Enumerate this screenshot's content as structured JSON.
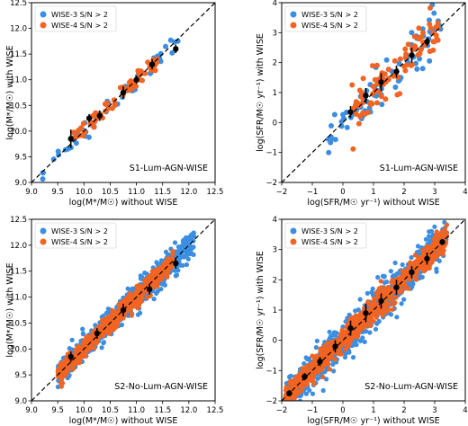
{
  "colors": {
    "wise3": "#3b8ee0",
    "wise4": "#f26422",
    "median": "#000000",
    "one_to_one": "#000000"
  },
  "legend": [
    "WISE-3 S/N > 2",
    "WISE-4 S/N > 2"
  ],
  "chart_data": [
    {
      "type": "scatter",
      "panel": "top-left",
      "annotation": "S1-Lum-AGN-WISE",
      "xlabel": "log(M*/M☉) without WISE",
      "ylabel": "log(M*/M☉) with WISE",
      "xlim": [
        9.0,
        12.5
      ],
      "ylim": [
        9.0,
        12.5
      ],
      "xticks": [
        "9.0",
        "9.5",
        "10.0",
        "10.5",
        "11.0",
        "11.5",
        "12.0",
        "12.5"
      ],
      "yticks": [
        "9.0",
        "9.5",
        "10.0",
        "10.5",
        "11.0",
        "11.5",
        "12.0",
        "12.5"
      ],
      "legend_position": "top-left",
      "one_to_one_line": true,
      "series": [
        {
          "name": "WISE-3 S/N > 2",
          "color_key": "wise3",
          "n": 60,
          "x_range": [
            9.2,
            11.8
          ],
          "scatter": 0.09
        },
        {
          "name": "WISE-4 S/N > 2",
          "color_key": "wise4",
          "n": 70,
          "x_range": [
            9.8,
            11.4
          ],
          "scatter": 0.08
        }
      ],
      "medians": {
        "x": [
          9.75,
          10.1,
          10.3,
          10.75,
          11.0,
          11.3,
          11.75
        ],
        "y": [
          9.85,
          10.25,
          10.3,
          10.75,
          11.0,
          11.3,
          11.6
        ],
        "yerr": [
          0.18,
          0.08,
          0.1,
          0.12,
          0.08,
          0.1,
          0.08
        ]
      }
    },
    {
      "type": "scatter",
      "panel": "top-right",
      "annotation": "S1-Lum-AGN-WISE",
      "xlabel": "log(SFR/M☉ yr⁻¹) without WISE",
      "ylabel": "log(SFR/M☉ yr⁻¹) with WISE",
      "xlim": [
        -2,
        4
      ],
      "ylim": [
        -2,
        4
      ],
      "xticks": [
        "−2",
        "−1",
        "0",
        "1",
        "2",
        "3",
        "4"
      ],
      "yticks": [
        "−2",
        "−1",
        "0",
        "1",
        "2",
        "3",
        "4"
      ],
      "legend_position": "top-left",
      "one_to_one_line": true,
      "series": [
        {
          "name": "WISE-3 S/N > 2",
          "color_key": "wise3",
          "n": 80,
          "x_range": [
            -0.5,
            3.2
          ],
          "scatter": 0.35
        },
        {
          "name": "WISE-4 S/N > 2",
          "color_key": "wise4",
          "n": 90,
          "x_range": [
            0.3,
            3.3
          ],
          "scatter": 0.35
        }
      ],
      "medians": {
        "x": [
          0.25,
          0.75,
          1.25,
          1.75,
          2.25,
          2.75
        ],
        "y": [
          0.35,
          0.9,
          1.35,
          1.7,
          2.25,
          2.7
        ],
        "yerr": [
          0.2,
          0.25,
          0.3,
          0.2,
          0.25,
          0.15
        ]
      }
    },
    {
      "type": "scatter",
      "panel": "bottom-left",
      "annotation": "S2-No-Lum-AGN-WISE",
      "xlabel": "log(M*/M☉) without WISE",
      "ylabel": "log(M*/M☉) with WISE",
      "xlim": [
        9.0,
        12.5
      ],
      "ylim": [
        9.0,
        12.5
      ],
      "xticks": [
        "9.0",
        "9.5",
        "10.0",
        "10.5",
        "11.0",
        "11.5",
        "12.0",
        "12.5"
      ],
      "yticks": [
        "9.0",
        "9.5",
        "10.0",
        "10.5",
        "11.0",
        "11.5",
        "12.0",
        "12.5"
      ],
      "legend_position": "top-left",
      "one_to_one_line": true,
      "series": [
        {
          "name": "WISE-3 S/N > 2",
          "color_key": "wise3",
          "n": 700,
          "x_range": [
            9.5,
            12.1
          ],
          "scatter": 0.13
        },
        {
          "name": "WISE-4 S/N > 2",
          "color_key": "wise4",
          "n": 600,
          "x_range": [
            9.5,
            11.7
          ],
          "scatter": 0.09
        }
      ],
      "medians": {
        "x": [
          9.75,
          10.25,
          10.75,
          11.25,
          11.75
        ],
        "y": [
          9.85,
          10.3,
          10.75,
          11.15,
          11.65
        ],
        "yerr": [
          0.1,
          0.1,
          0.12,
          0.1,
          0.1
        ]
      }
    },
    {
      "type": "scatter",
      "panel": "bottom-right",
      "annotation": "S2-No-Lum-AGN-WISE",
      "xlabel": "log(SFR/M☉ yr⁻¹) without WISE",
      "ylabel": "log(SFR/M☉ yr⁻¹) with WISE",
      "xlim": [
        -2,
        4
      ],
      "ylim": [
        -2,
        4
      ],
      "xticks": [
        "−2",
        "−1",
        "0",
        "1",
        "2",
        "3",
        "4"
      ],
      "yticks": [
        "−2",
        "−1",
        "0",
        "1",
        "2",
        "3",
        "4"
      ],
      "legend_position": "top-left",
      "one_to_one_line": true,
      "series": [
        {
          "name": "WISE-3 S/N > 2",
          "color_key": "wise3",
          "n": 900,
          "x_range": [
            -1.9,
            3.4
          ],
          "scatter": 0.3
        },
        {
          "name": "WISE-4 S/N > 2",
          "color_key": "wise4",
          "n": 800,
          "x_range": [
            -1.9,
            3.4
          ],
          "scatter": 0.2
        }
      ],
      "medians": {
        "x": [
          -1.75,
          -1.25,
          -0.75,
          -0.25,
          0.25,
          0.75,
          1.25,
          1.75,
          2.25,
          2.75,
          3.25
        ],
        "y": [
          -1.75,
          -1.2,
          -0.7,
          -0.2,
          0.4,
          0.9,
          1.3,
          1.75,
          2.25,
          2.7,
          3.25
        ],
        "yerr": [
          0.1,
          0.12,
          0.15,
          0.2,
          0.25,
          0.3,
          0.25,
          0.25,
          0.2,
          0.2,
          0.1
        ]
      }
    }
  ]
}
